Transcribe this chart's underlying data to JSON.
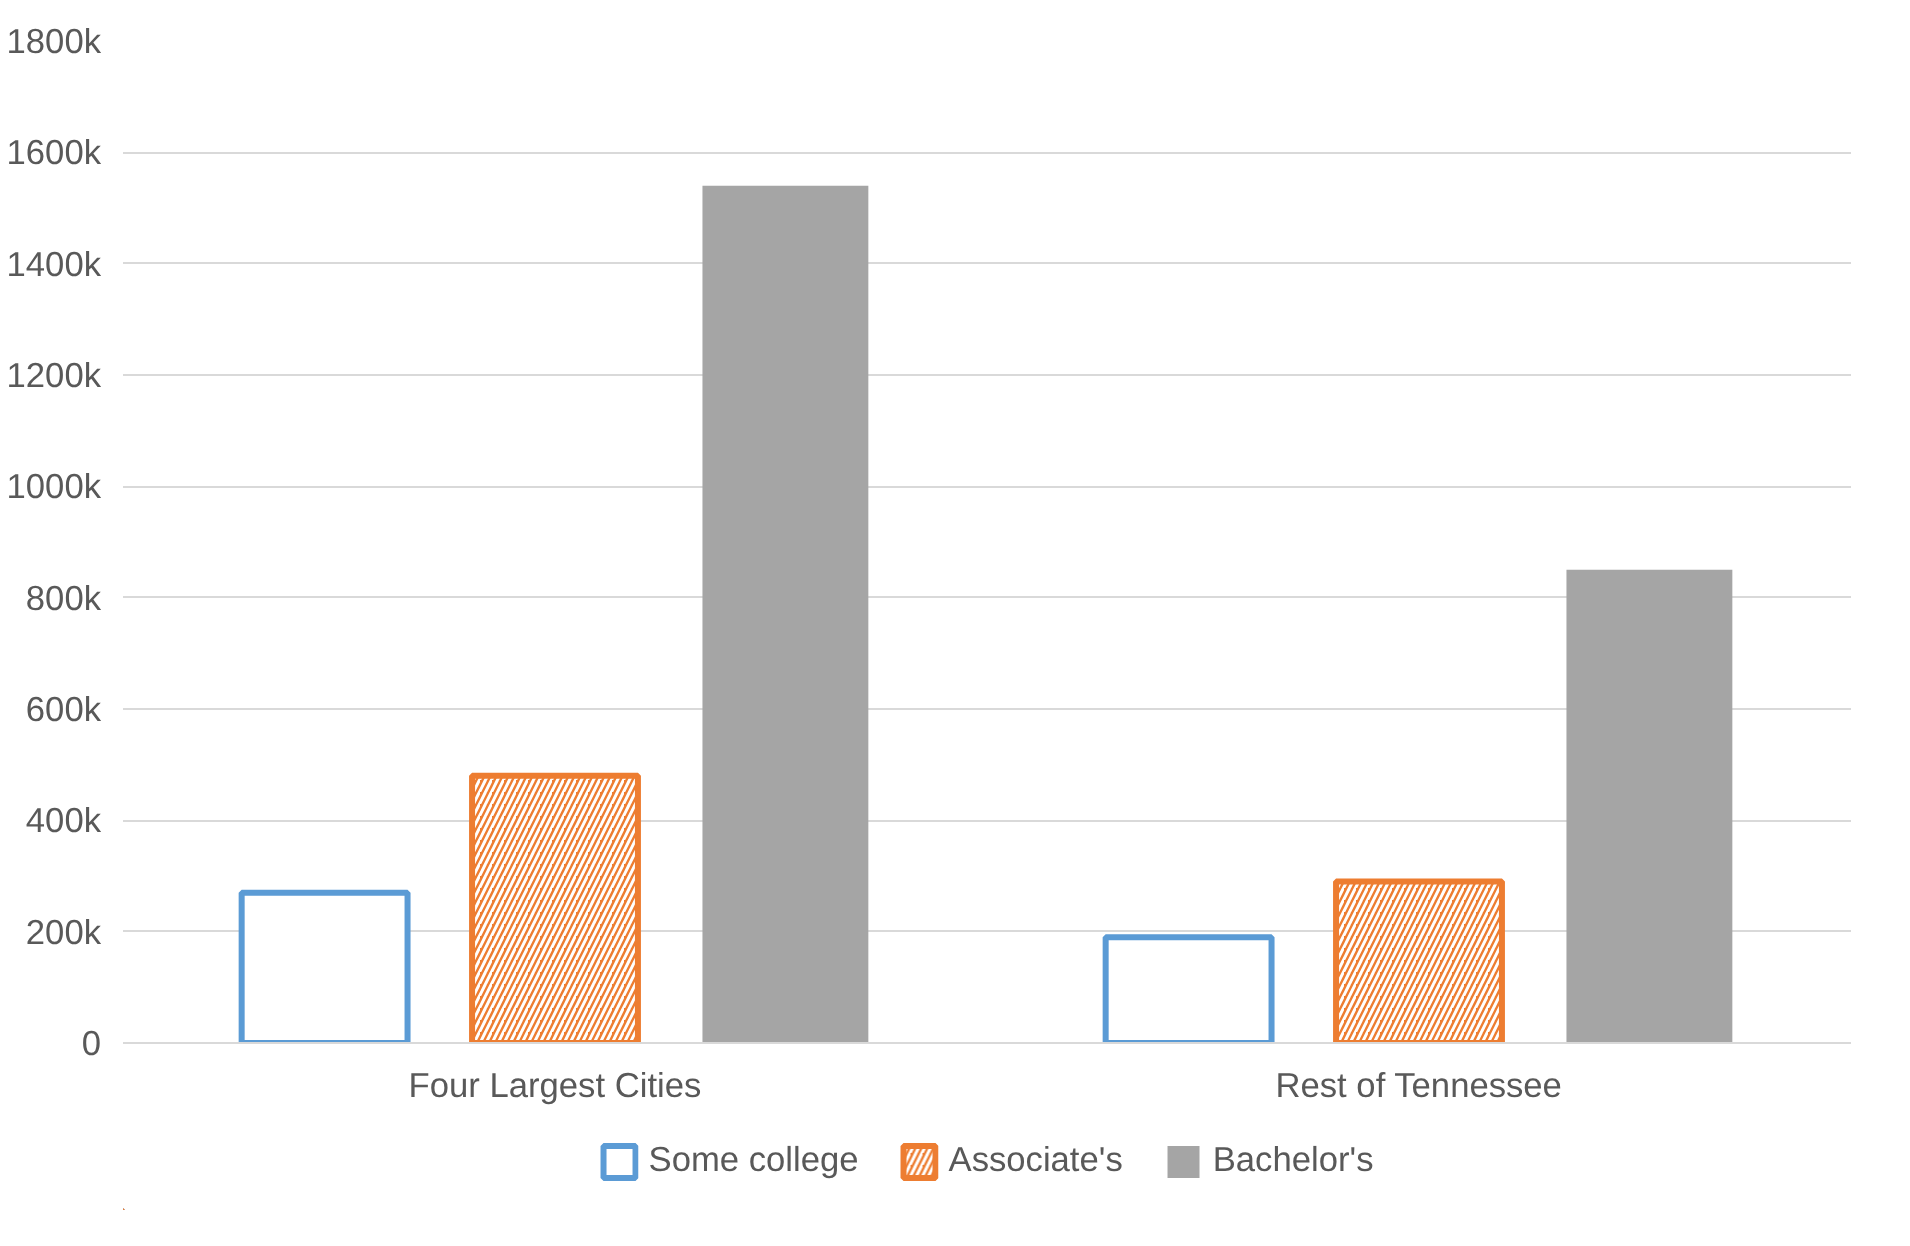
{
  "chart_data": {
    "type": "bar",
    "categories": [
      "Four Largest Cities",
      "Rest of Tennessee"
    ],
    "series": [
      {
        "name": "Some college",
        "color": "#5b9bd5",
        "values": [
          270,
          190
        ]
      },
      {
        "name": "Associate's",
        "color": "#ed7d31",
        "values": [
          480,
          290
        ]
      },
      {
        "name": "Bachelor's",
        "color": "#a5a5a5",
        "values": [
          1540,
          850
        ]
      }
    ],
    "ylim": [
      0,
      1800
    ],
    "yticks": [
      {
        "value": 0,
        "label": "0"
      },
      {
        "value": 200,
        "label": "200k"
      },
      {
        "value": 400,
        "label": "400k"
      },
      {
        "value": 600,
        "label": "600k"
      },
      {
        "value": 800,
        "label": "800k"
      },
      {
        "value": 1000,
        "label": "1000k"
      },
      {
        "value": 1200,
        "label": "1200k"
      },
      {
        "value": 1400,
        "label": "1400k"
      },
      {
        "value": 1600,
        "label": "1600k"
      },
      {
        "value": 1800,
        "label": "1800k"
      }
    ],
    "grid": "y",
    "legend": "bottom"
  }
}
